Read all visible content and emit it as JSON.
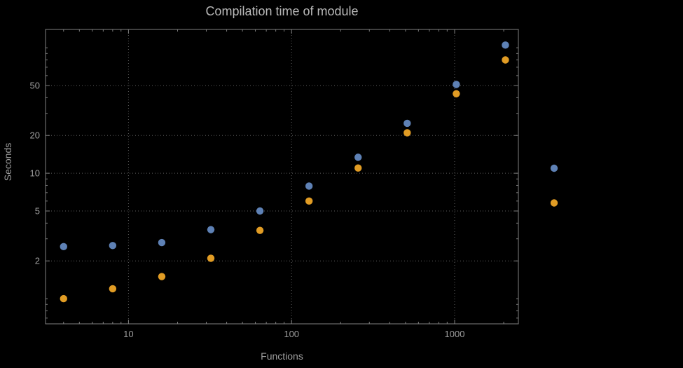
{
  "title": "Compilation time of module",
  "chart_data": {
    "type": "scatter",
    "title": "Compilation time of module",
    "xlabel": "Functions",
    "ylabel": "Seconds",
    "xscale": "log",
    "yscale": "log",
    "xlim": [
      3.1,
      2460
    ],
    "ylim": [
      0.63,
      140
    ],
    "grid": "dotted",
    "x": [
      4,
      8,
      16,
      32,
      64,
      128,
      256,
      512,
      1024,
      2048
    ],
    "series": [
      {
        "label": "",
        "color": "#5e81b5",
        "values": [
          2.6,
          2.65,
          2.8,
          3.55,
          5.0,
          7.9,
          13.4,
          25,
          51,
          105
        ]
      },
      {
        "label": "",
        "color": "#e19c24",
        "values": [
          1.0,
          1.2,
          1.5,
          2.1,
          3.5,
          6.0,
          11,
          21,
          43,
          80
        ]
      }
    ],
    "x_ticks": [
      {
        "value": 10,
        "label": "10"
      },
      {
        "value": 100,
        "label": "100"
      },
      {
        "value": 1000,
        "label": "1000"
      }
    ],
    "y_ticks": [
      {
        "value": 2,
        "label": "2"
      },
      {
        "value": 5,
        "label": "5"
      },
      {
        "value": 10,
        "label": "10"
      },
      {
        "value": 20,
        "label": "20"
      },
      {
        "value": 50,
        "label": "50"
      }
    ],
    "x_gridlines": [
      10,
      100,
      1000
    ],
    "y_gridlines": [
      2,
      5,
      10,
      20,
      50
    ],
    "legend_position": "right",
    "legend": {
      "visible_labels": false,
      "markers": [
        {
          "color": "#5e81b5"
        },
        {
          "color": "#e19c24"
        }
      ]
    }
  },
  "colors": {
    "background": "#000000",
    "frame": "#7f7f7f",
    "grid": "#5e5e5e",
    "tick_text": "#9e9e9e",
    "title_text": "#b9b9b9",
    "series_blue": "#5e81b5",
    "series_orange": "#e19c24"
  }
}
